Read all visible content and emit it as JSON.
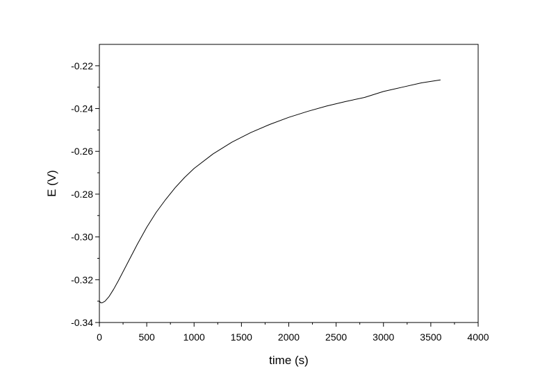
{
  "chart_data": {
    "type": "line",
    "title": "",
    "xlabel": "time (s)",
    "ylabel": "E (V)",
    "xlim": [
      0,
      4000
    ],
    "ylim": [
      -0.34,
      -0.21
    ],
    "x_ticks": [
      0,
      500,
      1000,
      1500,
      2000,
      2500,
      3000,
      3500,
      4000
    ],
    "x_tick_labels": [
      "0",
      "500",
      "1000",
      "1500",
      "2000",
      "2500",
      "3000",
      "3500",
      "4000"
    ],
    "y_ticks": [
      -0.34,
      -0.32,
      -0.3,
      -0.28,
      -0.26,
      -0.24,
      -0.22
    ],
    "y_tick_labels": [
      "-0.34",
      "-0.32",
      "-0.30",
      "-0.28",
      "-0.26",
      "-0.24",
      "-0.22"
    ],
    "grid": false,
    "legend": "none",
    "colors": {
      "line": "#000000",
      "axes": "#000000"
    },
    "series": [
      {
        "x": [
          0,
          15,
          30,
          60,
          100,
          150,
          200,
          300,
          400,
          500,
          600,
          700,
          800,
          900,
          1000,
          1200,
          1400,
          1600,
          1800,
          2000,
          2200,
          2400,
          2600,
          2800,
          3000,
          3200,
          3400,
          3600
        ],
        "y": [
          -0.33,
          -0.3308,
          -0.3308,
          -0.33,
          -0.328,
          -0.3245,
          -0.3205,
          -0.312,
          -0.3035,
          -0.2955,
          -0.2885,
          -0.2825,
          -0.277,
          -0.2722,
          -0.268,
          -0.2612,
          -0.2557,
          -0.2512,
          -0.2474,
          -0.2441,
          -0.2413,
          -0.2388,
          -0.2367,
          -0.2348,
          -0.232,
          -0.23,
          -0.228,
          -0.2266
        ]
      }
    ]
  }
}
